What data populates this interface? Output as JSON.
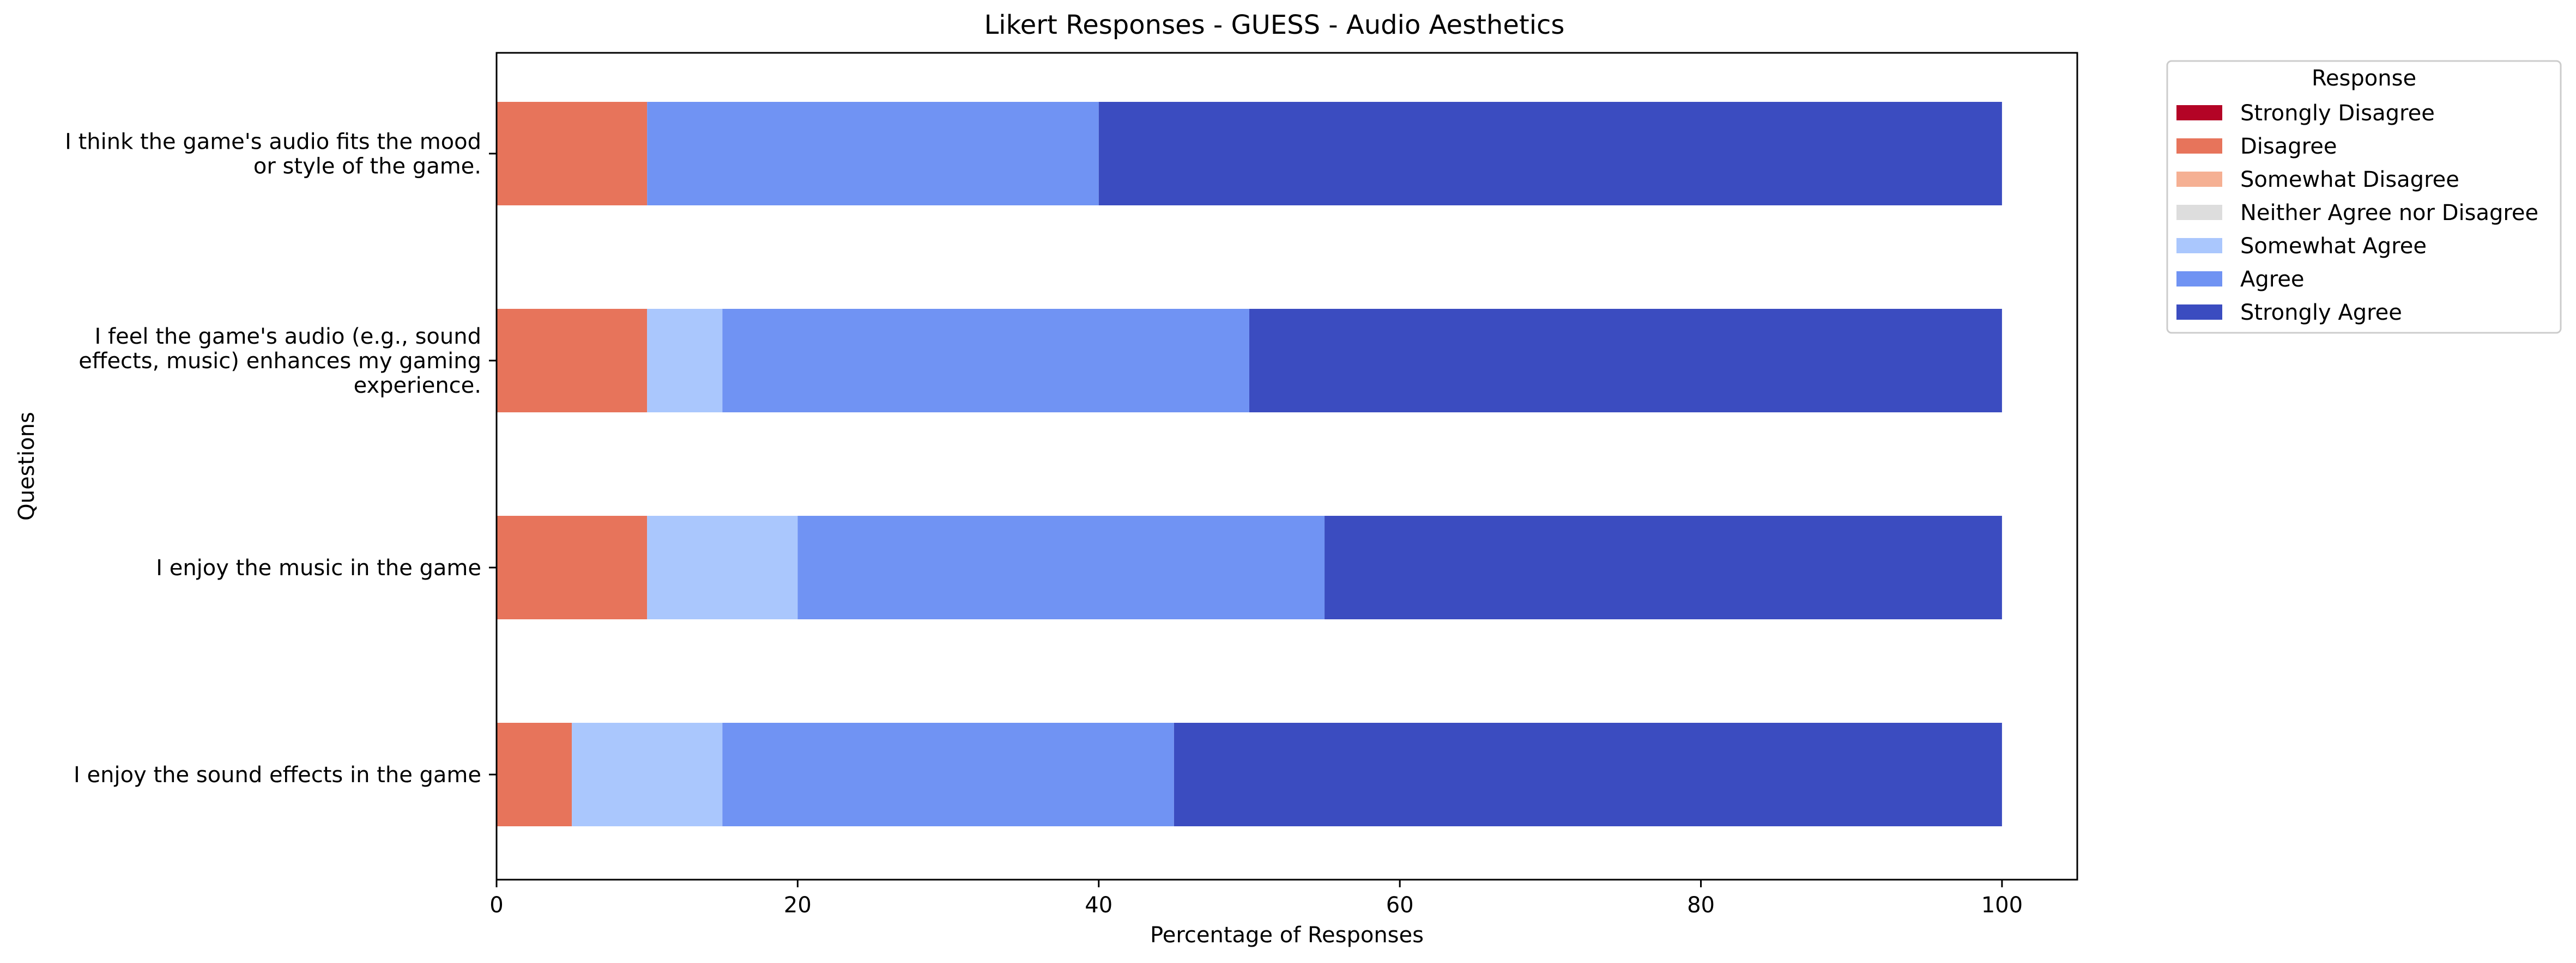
{
  "chart_data": {
    "type": "bar",
    "orientation": "horizontal",
    "stacked": true,
    "title": "Likert Responses - GUESS - Audio Aesthetics",
    "xlabel": "Percentage of Responses",
    "ylabel": "Questions",
    "xlim": [
      0,
      105
    ],
    "xticks": [
      "0",
      "20",
      "40",
      "60",
      "80",
      "100"
    ],
    "grid": false,
    "legend_title": "Response",
    "legend_position": "outside-top-right",
    "categories": [
      "I think the game's audio fits the mood or style of the game.",
      "I feel the game's audio (e.g., sound effects, music) enhances my gaming experience.",
      "I enjoy the music in the game",
      "I enjoy the sound effects in the game"
    ],
    "category_label_lines": [
      [
        "I think the game's audio fits the mood",
        "or style of the game."
      ],
      [
        "I feel the game's audio (e.g., sound",
        "effects, music) enhances my gaming",
        "experience."
      ],
      [
        "I enjoy the music in the game"
      ],
      [
        "I enjoy the sound effects in the game"
      ]
    ],
    "series": [
      {
        "name": "Strongly Disagree",
        "color": "#b40426",
        "values": [
          0,
          0,
          0,
          0
        ]
      },
      {
        "name": "Disagree",
        "color": "#e7745b",
        "values": [
          10,
          10,
          10,
          5
        ]
      },
      {
        "name": "Somewhat Disagree",
        "color": "#f5b093",
        "values": [
          0,
          0,
          0,
          0
        ]
      },
      {
        "name": "Neither Agree nor Disagree",
        "color": "#dddddd",
        "values": [
          0,
          0,
          0,
          0
        ]
      },
      {
        "name": "Somewhat Agree",
        "color": "#aac7fd",
        "values": [
          0,
          5,
          10,
          10
        ]
      },
      {
        "name": "Agree",
        "color": "#7093f3",
        "values": [
          30,
          35,
          35,
          30
        ]
      },
      {
        "name": "Strongly Agree",
        "color": "#3b4cc0",
        "values": [
          60,
          50,
          45,
          55
        ]
      }
    ]
  }
}
